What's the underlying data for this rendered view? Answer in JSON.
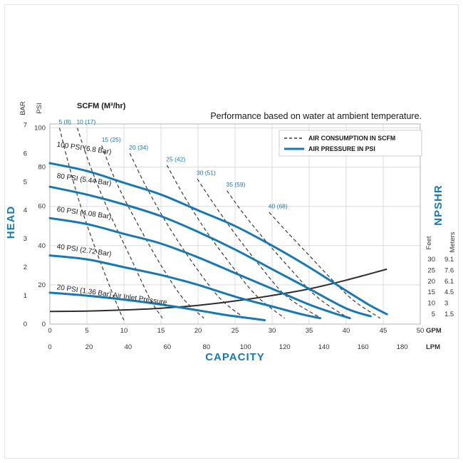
{
  "colors": {
    "accent": "#1779b3",
    "consumption_line": "#3a3a3a",
    "npshr_line": "#2d2d2d",
    "grid": "#dcdcdc"
  },
  "header": {
    "scfm_units_label": "SCFM (M³/hr)",
    "title": "Performance based on water at ambient temperature."
  },
  "legend": {
    "items": [
      {
        "label": "AIR CONSUMPTION IN SCFM",
        "line_style": "dashed"
      },
      {
        "label": "AIR PRESSURE IN PSI",
        "line_style": "solid"
      }
    ]
  },
  "axes": {
    "left": {
      "head_label": "HEAD",
      "bar_label": "BAR",
      "psi_label": "PSI"
    },
    "bottom": {
      "capacity_label": "CAPACITY",
      "gpm_unit": "GPM",
      "lpm_unit": "LPM"
    },
    "right": {
      "npshr_label": "NPSHR",
      "feet_label": "Feet",
      "meters_label": "Meters"
    }
  },
  "chart_data": {
    "type": "line",
    "title": "Performance based on water at ambient temperature.",
    "x_axis": {
      "label": "CAPACITY",
      "primary_unit": "GPM",
      "secondary_unit": "LPM",
      "gpm_range": [
        0,
        50
      ],
      "lpm_range": [
        0,
        180
      ],
      "gpm_ticks": [
        0,
        5,
        10,
        15,
        20,
        25,
        30,
        35,
        40,
        45,
        50
      ],
      "lpm_ticks": [
        0,
        20,
        40,
        60,
        80,
        100,
        120,
        140,
        160,
        180
      ],
      "grid": true
    },
    "y_axis": {
      "label": "HEAD",
      "primary_unit": "PSI",
      "secondary_unit": "BAR",
      "psi_range": [
        0,
        100
      ],
      "bar_range": [
        0,
        7
      ],
      "psi_ticks": [
        0,
        20,
        40,
        60,
        80,
        100
      ],
      "bar_ticks": [
        0,
        1,
        2,
        3,
        4,
        5,
        6,
        7
      ]
    },
    "secondary_y_axis": {
      "label": "NPSHR",
      "units": [
        "Feet",
        "Meters"
      ],
      "feet_range": [
        5,
        30
      ],
      "ticks": [
        {
          "feet": "30",
          "meters": "9.1"
        },
        {
          "feet": "25",
          "meters": "7.6"
        },
        {
          "feet": "20",
          "meters": "6.1"
        },
        {
          "feet": "15",
          "meters": "4.5"
        },
        {
          "feet": "10",
          "meters": "3"
        },
        {
          "feet": "5",
          "meters": "1.5"
        }
      ]
    },
    "air_pressure_curves": [
      {
        "label": "100 PSI (6.8 Bar)",
        "label_at": [
          0.9,
          90.5
        ],
        "points": [
          [
            0,
            82
          ],
          [
            5,
            78
          ],
          [
            10,
            72
          ],
          [
            15,
            66
          ],
          [
            20,
            58
          ],
          [
            25,
            50
          ],
          [
            30,
            40
          ],
          [
            35,
            29
          ],
          [
            40,
            17
          ],
          [
            43,
            10
          ],
          [
            45.5,
            5
          ]
        ]
      },
      {
        "label": "80 PSI (5.44 Bar)",
        "label_at": [
          0.9,
          74.5
        ],
        "points": [
          [
            0,
            70
          ],
          [
            5,
            66
          ],
          [
            10,
            61
          ],
          [
            15,
            55
          ],
          [
            20,
            47
          ],
          [
            25,
            38
          ],
          [
            30,
            28
          ],
          [
            35,
            18
          ],
          [
            40,
            8
          ],
          [
            43.3,
            4
          ]
        ]
      },
      {
        "label": "60 PSI (4.08 Bar)",
        "label_at": [
          0.9,
          57.5
        ],
        "points": [
          [
            0,
            54
          ],
          [
            5,
            51
          ],
          [
            10,
            46
          ],
          [
            15,
            41
          ],
          [
            20,
            34
          ],
          [
            25,
            26
          ],
          [
            30,
            18
          ],
          [
            35,
            10
          ],
          [
            38,
            6
          ],
          [
            40.5,
            3
          ]
        ]
      },
      {
        "label": "40 PSI (2.72 Bar)",
        "label_at": [
          0.9,
          38.5
        ],
        "points": [
          [
            0,
            35
          ],
          [
            5,
            33
          ],
          [
            10,
            29
          ],
          [
            15,
            25
          ],
          [
            20,
            20
          ],
          [
            25,
            14
          ],
          [
            30,
            9
          ],
          [
            34,
            5
          ],
          [
            36.5,
            3
          ]
        ]
      },
      {
        "label": "20 PSI (1.36 Bar) Air Inlet Pressure",
        "label_at": [
          0.9,
          17.8
        ],
        "points": [
          [
            0,
            16
          ],
          [
            5,
            14.5
          ],
          [
            10,
            12.5
          ],
          [
            15,
            10
          ],
          [
            20,
            7
          ],
          [
            24,
            4.5
          ],
          [
            27,
            3
          ],
          [
            29,
            2
          ]
        ]
      }
    ],
    "air_consumption_curves": [
      {
        "label": "5 (8)",
        "label_at": [
          1.2,
          102
        ],
        "points": [
          [
            1.3,
            100
          ],
          [
            2.5,
            82
          ],
          [
            4,
            62
          ],
          [
            6,
            40
          ],
          [
            8,
            20
          ],
          [
            9.5,
            6
          ],
          [
            10,
            2
          ]
        ]
      },
      {
        "label": "10 (17)",
        "label_at": [
          3.6,
          102
        ],
        "points": [
          [
            3.7,
            100
          ],
          [
            5.5,
            80
          ],
          [
            8,
            57
          ],
          [
            11,
            33
          ],
          [
            13.5,
            13
          ],
          [
            15.2,
            3
          ]
        ]
      },
      {
        "label": "15 (25)",
        "label_at": [
          7.0,
          93
        ],
        "points": [
          [
            7,
            91
          ],
          [
            9,
            72
          ],
          [
            12,
            50
          ],
          [
            15,
            30
          ],
          [
            18,
            13
          ],
          [
            20.8,
            3
          ]
        ]
      },
      {
        "label": "20 (34)",
        "label_at": [
          10.7,
          89
        ],
        "points": [
          [
            10.8,
            87
          ],
          [
            13,
            70
          ],
          [
            16,
            50
          ],
          [
            19.5,
            30
          ],
          [
            23,
            13
          ],
          [
            26.3,
            3
          ]
        ]
      },
      {
        "label": "25 (42)",
        "label_at": [
          15.7,
          83
        ],
        "points": [
          [
            15.8,
            81
          ],
          [
            18,
            66
          ],
          [
            21,
            48
          ],
          [
            24.5,
            30
          ],
          [
            28,
            14
          ],
          [
            31.7,
            3
          ]
        ]
      },
      {
        "label": "30 (51)",
        "label_at": [
          19.8,
          76
        ],
        "points": [
          [
            19.9,
            74
          ],
          [
            22,
            62
          ],
          [
            25,
            46
          ],
          [
            28.5,
            29
          ],
          [
            32,
            14
          ],
          [
            36.6,
            3
          ]
        ]
      },
      {
        "label": "35 (59)",
        "label_at": [
          23.8,
          70
        ],
        "points": [
          [
            23.9,
            68
          ],
          [
            26,
            57
          ],
          [
            29,
            43
          ],
          [
            32.5,
            28
          ],
          [
            36,
            14
          ],
          [
            40.3,
            3
          ]
        ]
      },
      {
        "label": "40 (68)",
        "label_at": [
          29.5,
          59
        ],
        "points": [
          [
            29.6,
            57
          ],
          [
            32,
            47
          ],
          [
            35,
            35
          ],
          [
            38,
            23
          ],
          [
            41,
            12
          ],
          [
            44.6,
            3
          ]
        ]
      }
    ],
    "npshr_curve": {
      "x_unit": "GPM",
      "y_unit": "Feet",
      "points": [
        [
          0,
          6.2
        ],
        [
          5,
          6.4
        ],
        [
          10,
          6.9
        ],
        [
          15,
          7.7
        ],
        [
          20,
          9
        ],
        [
          25,
          11
        ],
        [
          30,
          13.5
        ],
        [
          35,
          16.5
        ],
        [
          40,
          20.5
        ],
        [
          45.5,
          25.5
        ]
      ]
    }
  }
}
